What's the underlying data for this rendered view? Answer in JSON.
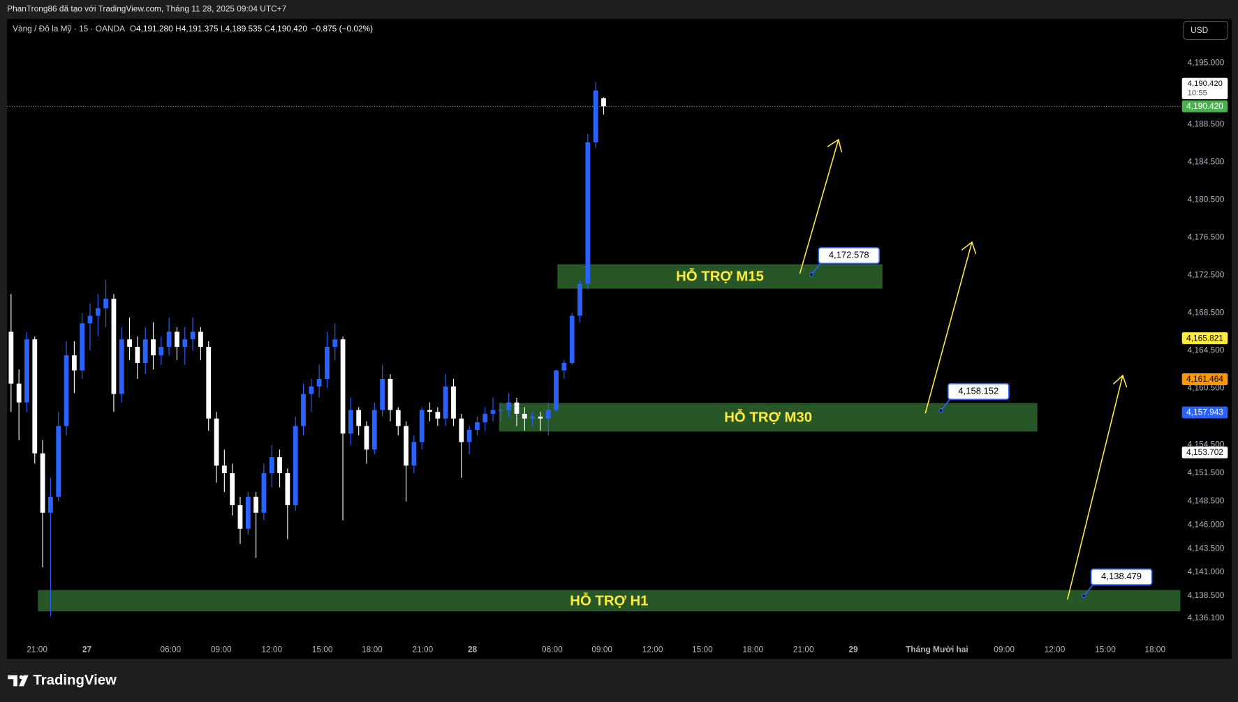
{
  "header": {
    "text": "PhanTrong86 đã tạo với TradingView.com, Tháng 11 28, 2025 09:04 UTC+7"
  },
  "footer": {
    "brand": "TradingView"
  },
  "chart_data": {
    "type": "candlestick",
    "symbol": "Vàng / Đô la Mỹ · 15 · OANDA",
    "legend": [
      {
        "key": "O",
        "value": "4,191.280"
      },
      {
        "key": "H",
        "value": "4,191.375"
      },
      {
        "key": "L",
        "value": "4,189.535"
      },
      {
        "key": "C",
        "value": "4,190.420"
      }
    ],
    "change": "−0.875 (−0.02%)",
    "currency": "USD",
    "up_color": "#2962ff",
    "down_color": "#ffffff",
    "candles": {
      "open": [
        4166.5,
        4161.0,
        4159.0,
        4165.7,
        4153.6,
        4147.3,
        4149.0,
        4156.5,
        4164.0,
        4162.4,
        4167.4,
        4168.2,
        4169.0,
        4170.0,
        4159.9,
        4165.7,
        4164.9,
        4163.2,
        4165.7,
        4164.0,
        4164.9,
        4166.5,
        4164.9,
        4165.7,
        4166.5,
        4164.9,
        4157.3,
        4152.3,
        4151.5,
        4148.1,
        4145.6,
        4149.0,
        4147.3,
        4151.5,
        4153.2,
        4151.5,
        4148.1,
        4156.5,
        4159.9,
        4160.7,
        4161.5,
        4164.9,
        4165.7,
        4155.7,
        4158.2,
        4156.5,
        4154.0,
        4158.2,
        4161.5,
        4158.2,
        4156.5,
        4152.3,
        4154.8,
        4158.2,
        4158.0,
        4157.3,
        4160.7,
        4157.3,
        4154.8,
        4156.1,
        4156.9,
        4157.8,
        4158.2,
        4158.2,
        4159.0,
        4157.8,
        4157.3,
        4157.5,
        4157.3,
        4158.2,
        4162.4,
        4163.2,
        4168.2,
        4171.6,
        4186.6,
        4191.28
      ],
      "high": [
        4170.5,
        4162.5,
        4166.5,
        4166.0,
        4155.0,
        4151.0,
        4158.0,
        4165.5,
        4165.5,
        4168.5,
        4169.5,
        4170.5,
        4172.0,
        4170.5,
        4167.0,
        4168.0,
        4166.0,
        4167.0,
        4167.5,
        4166.0,
        4168.0,
        4167.0,
        4167.0,
        4168.0,
        4167.0,
        4165.5,
        4158.0,
        4154.0,
        4152.5,
        4149.0,
        4149.5,
        4149.5,
        4152.5,
        4154.5,
        4154.0,
        4152.0,
        4157.5,
        4161.0,
        4161.5,
        4163.0,
        4166.5,
        4167.4,
        4166.0,
        4159.5,
        4158.5,
        4157.0,
        4159.0,
        4163.0,
        4162.0,
        4158.5,
        4157.0,
        4155.5,
        4158.5,
        4159.0,
        4158.5,
        4162.0,
        4161.5,
        4157.8,
        4156.5,
        4157.5,
        4158.5,
        4159.5,
        4159.0,
        4160.0,
        4159.5,
        4158.5,
        4158.0,
        4158.0,
        4159.0,
        4162.5,
        4163.5,
        4168.5,
        4172.0,
        4187.5,
        4193.0,
        4191.375
      ],
      "low": [
        4158.0,
        4155.0,
        4158.0,
        4152.5,
        4141.5,
        4136.3,
        4148.5,
        4155.5,
        4160.0,
        4161.5,
        4164.5,
        4166.0,
        4167.0,
        4158.0,
        4159.0,
        4163.5,
        4161.5,
        4162.0,
        4162.5,
        4163.0,
        4164.0,
        4163.5,
        4163.0,
        4164.5,
        4163.5,
        4156.0,
        4150.5,
        4149.5,
        4147.0,
        4144.0,
        4145.0,
        4142.5,
        4146.5,
        4150.0,
        4150.0,
        4144.5,
        4147.5,
        4155.5,
        4158.0,
        4159.5,
        4160.5,
        4163.5,
        4146.5,
        4154.5,
        4155.5,
        4152.5,
        4153.5,
        4157.5,
        4157.0,
        4155.5,
        4148.5,
        4151.5,
        4154.0,
        4157.0,
        4156.5,
        4156.5,
        4156.5,
        4151.0,
        4153.5,
        4155.5,
        4156.0,
        4157.0,
        4157.0,
        4157.5,
        4156.5,
        4156.0,
        4156.5,
        4156.0,
        4155.5,
        4158.0,
        4161.5,
        4163.0,
        4167.5,
        4171.0,
        4186.0,
        4189.535
      ],
      "close": [
        4161.0,
        4159.0,
        4165.7,
        4153.6,
        4147.3,
        4149.0,
        4156.5,
        4164.0,
        4162.4,
        4167.4,
        4168.2,
        4169.0,
        4170.0,
        4159.9,
        4165.7,
        4164.9,
        4163.2,
        4165.7,
        4164.0,
        4164.9,
        4166.5,
        4164.9,
        4165.7,
        4166.5,
        4164.9,
        4157.3,
        4152.3,
        4151.5,
        4148.1,
        4145.6,
        4149.0,
        4147.3,
        4151.5,
        4153.2,
        4151.5,
        4148.1,
        4156.5,
        4159.9,
        4160.7,
        4161.5,
        4164.9,
        4165.7,
        4155.7,
        4158.2,
        4156.5,
        4154.0,
        4158.2,
        4161.5,
        4158.2,
        4156.5,
        4152.3,
        4154.8,
        4158.2,
        4158.0,
        4157.3,
        4160.7,
        4157.3,
        4154.8,
        4156.1,
        4156.9,
        4157.8,
        4158.2,
        4158.2,
        4159.0,
        4157.8,
        4157.3,
        4157.5,
        4157.3,
        4158.2,
        4162.4,
        4163.2,
        4168.2,
        4171.6,
        4186.6,
        4192.1,
        4190.42
      ]
    },
    "xlim": [
      -0.5,
      148
    ],
    "xticks": [
      {
        "value": 3.3,
        "label": "21:00"
      },
      {
        "value": 9.6,
        "label": "27"
      },
      {
        "value": 20.2,
        "label": "06:00"
      },
      {
        "value": 26.6,
        "label": "09:00"
      },
      {
        "value": 33.0,
        "label": "12:00"
      },
      {
        "value": 39.4,
        "label": "15:00"
      },
      {
        "value": 45.7,
        "label": "18:00"
      },
      {
        "value": 52.1,
        "label": "21:00"
      },
      {
        "value": 58.4,
        "label": "28"
      },
      {
        "value": 68.5,
        "label": "06:00"
      },
      {
        "value": 74.8,
        "label": "09:00"
      },
      {
        "value": 81.2,
        "label": "12:00"
      },
      {
        "value": 87.5,
        "label": "15:00"
      },
      {
        "value": 93.9,
        "label": "18:00"
      },
      {
        "value": 100.3,
        "label": "21:00"
      },
      {
        "value": 106.6,
        "label": "29"
      },
      {
        "value": 117.2,
        "label": "Tháng Mười hai"
      },
      {
        "value": 125.7,
        "label": "09:00"
      },
      {
        "value": 132.1,
        "label": "12:00"
      },
      {
        "value": 138.5,
        "label": "15:00"
      },
      {
        "value": 144.8,
        "label": "18:00"
      }
    ],
    "ylim": [
      4131.74,
      4199.69
    ],
    "yticks": [
      {
        "value": 4195,
        "label": "4,195.000"
      },
      {
        "value": 4188.5,
        "label": "4,188.500"
      },
      {
        "value": 4184.5,
        "label": "4,184.500"
      },
      {
        "value": 4180.5,
        "label": "4,180.500"
      },
      {
        "value": 4176.5,
        "label": "4,176.500"
      },
      {
        "value": 4172.5,
        "label": "4,172.500"
      },
      {
        "value": 4168.5,
        "label": "4,168.500"
      },
      {
        "value": 4164.5,
        "label": "4,164.500"
      },
      {
        "value": 4160.5,
        "label": "4,160.500"
      },
      {
        "value": 4154.5,
        "label": "4,154.500"
      },
      {
        "value": 4151.5,
        "label": "4,151.500"
      },
      {
        "value": 4148.5,
        "label": "4,148.500"
      },
      {
        "value": 4146,
        "label": "4,146.000"
      },
      {
        "value": 4143.5,
        "label": "4,143.500"
      },
      {
        "value": 4141,
        "label": "4,141.000"
      },
      {
        "value": 4138.5,
        "label": "4,138.500"
      },
      {
        "value": 4136.1,
        "label": "4,136.100"
      }
    ],
    "grid": false,
    "last_price": {
      "value": 4190.42,
      "label": "4,190.420",
      "countdown": "10:55"
    },
    "price_labels": [
      {
        "value": 4190.42,
        "label": "4,190.420",
        "color": "#4caf50",
        "text_color": "#ffffff"
      },
      {
        "value": 4165.821,
        "label": "4,165.821",
        "color": "#ffeb3b",
        "text_color": "#000000"
      },
      {
        "value": 4161.464,
        "label": "4,161.464",
        "color": "#ff9800",
        "text_color": "#000000"
      },
      {
        "value": 4157.943,
        "label": "4,157.943",
        "color": "#2962ff",
        "text_color": "#ffffff"
      },
      {
        "value": 4153.702,
        "label": "4,153.702",
        "color": "#ffffff",
        "text_color": "#000000"
      }
    ],
    "zones": [
      {
        "label": "HỖ TRỢ M15",
        "top": 4173.66,
        "bottom": 4171.07,
        "start": 69.15,
        "end": 110.3
      },
      {
        "label": "HỖ TRỢ M30",
        "top": 4158.93,
        "bottom": 4155.92,
        "start": 61.76,
        "end": 129.9
      },
      {
        "label": "HỖ TRỢ H1",
        "top": 4139.1,
        "bottom": 4136.84,
        "start": 3.4,
        "end": 148
      }
    ],
    "zone_color": "#2b5f2b",
    "zone_text_color": "#ffeb3b",
    "callouts": [
      {
        "value": 4172.578,
        "label": "4,172.578",
        "bar": 101.3
      },
      {
        "value": 4158.152,
        "label": "4,158.152",
        "bar": 117.7
      },
      {
        "value": 4138.479,
        "label": "4,138.479",
        "bar": 135.8
      }
    ]
  }
}
